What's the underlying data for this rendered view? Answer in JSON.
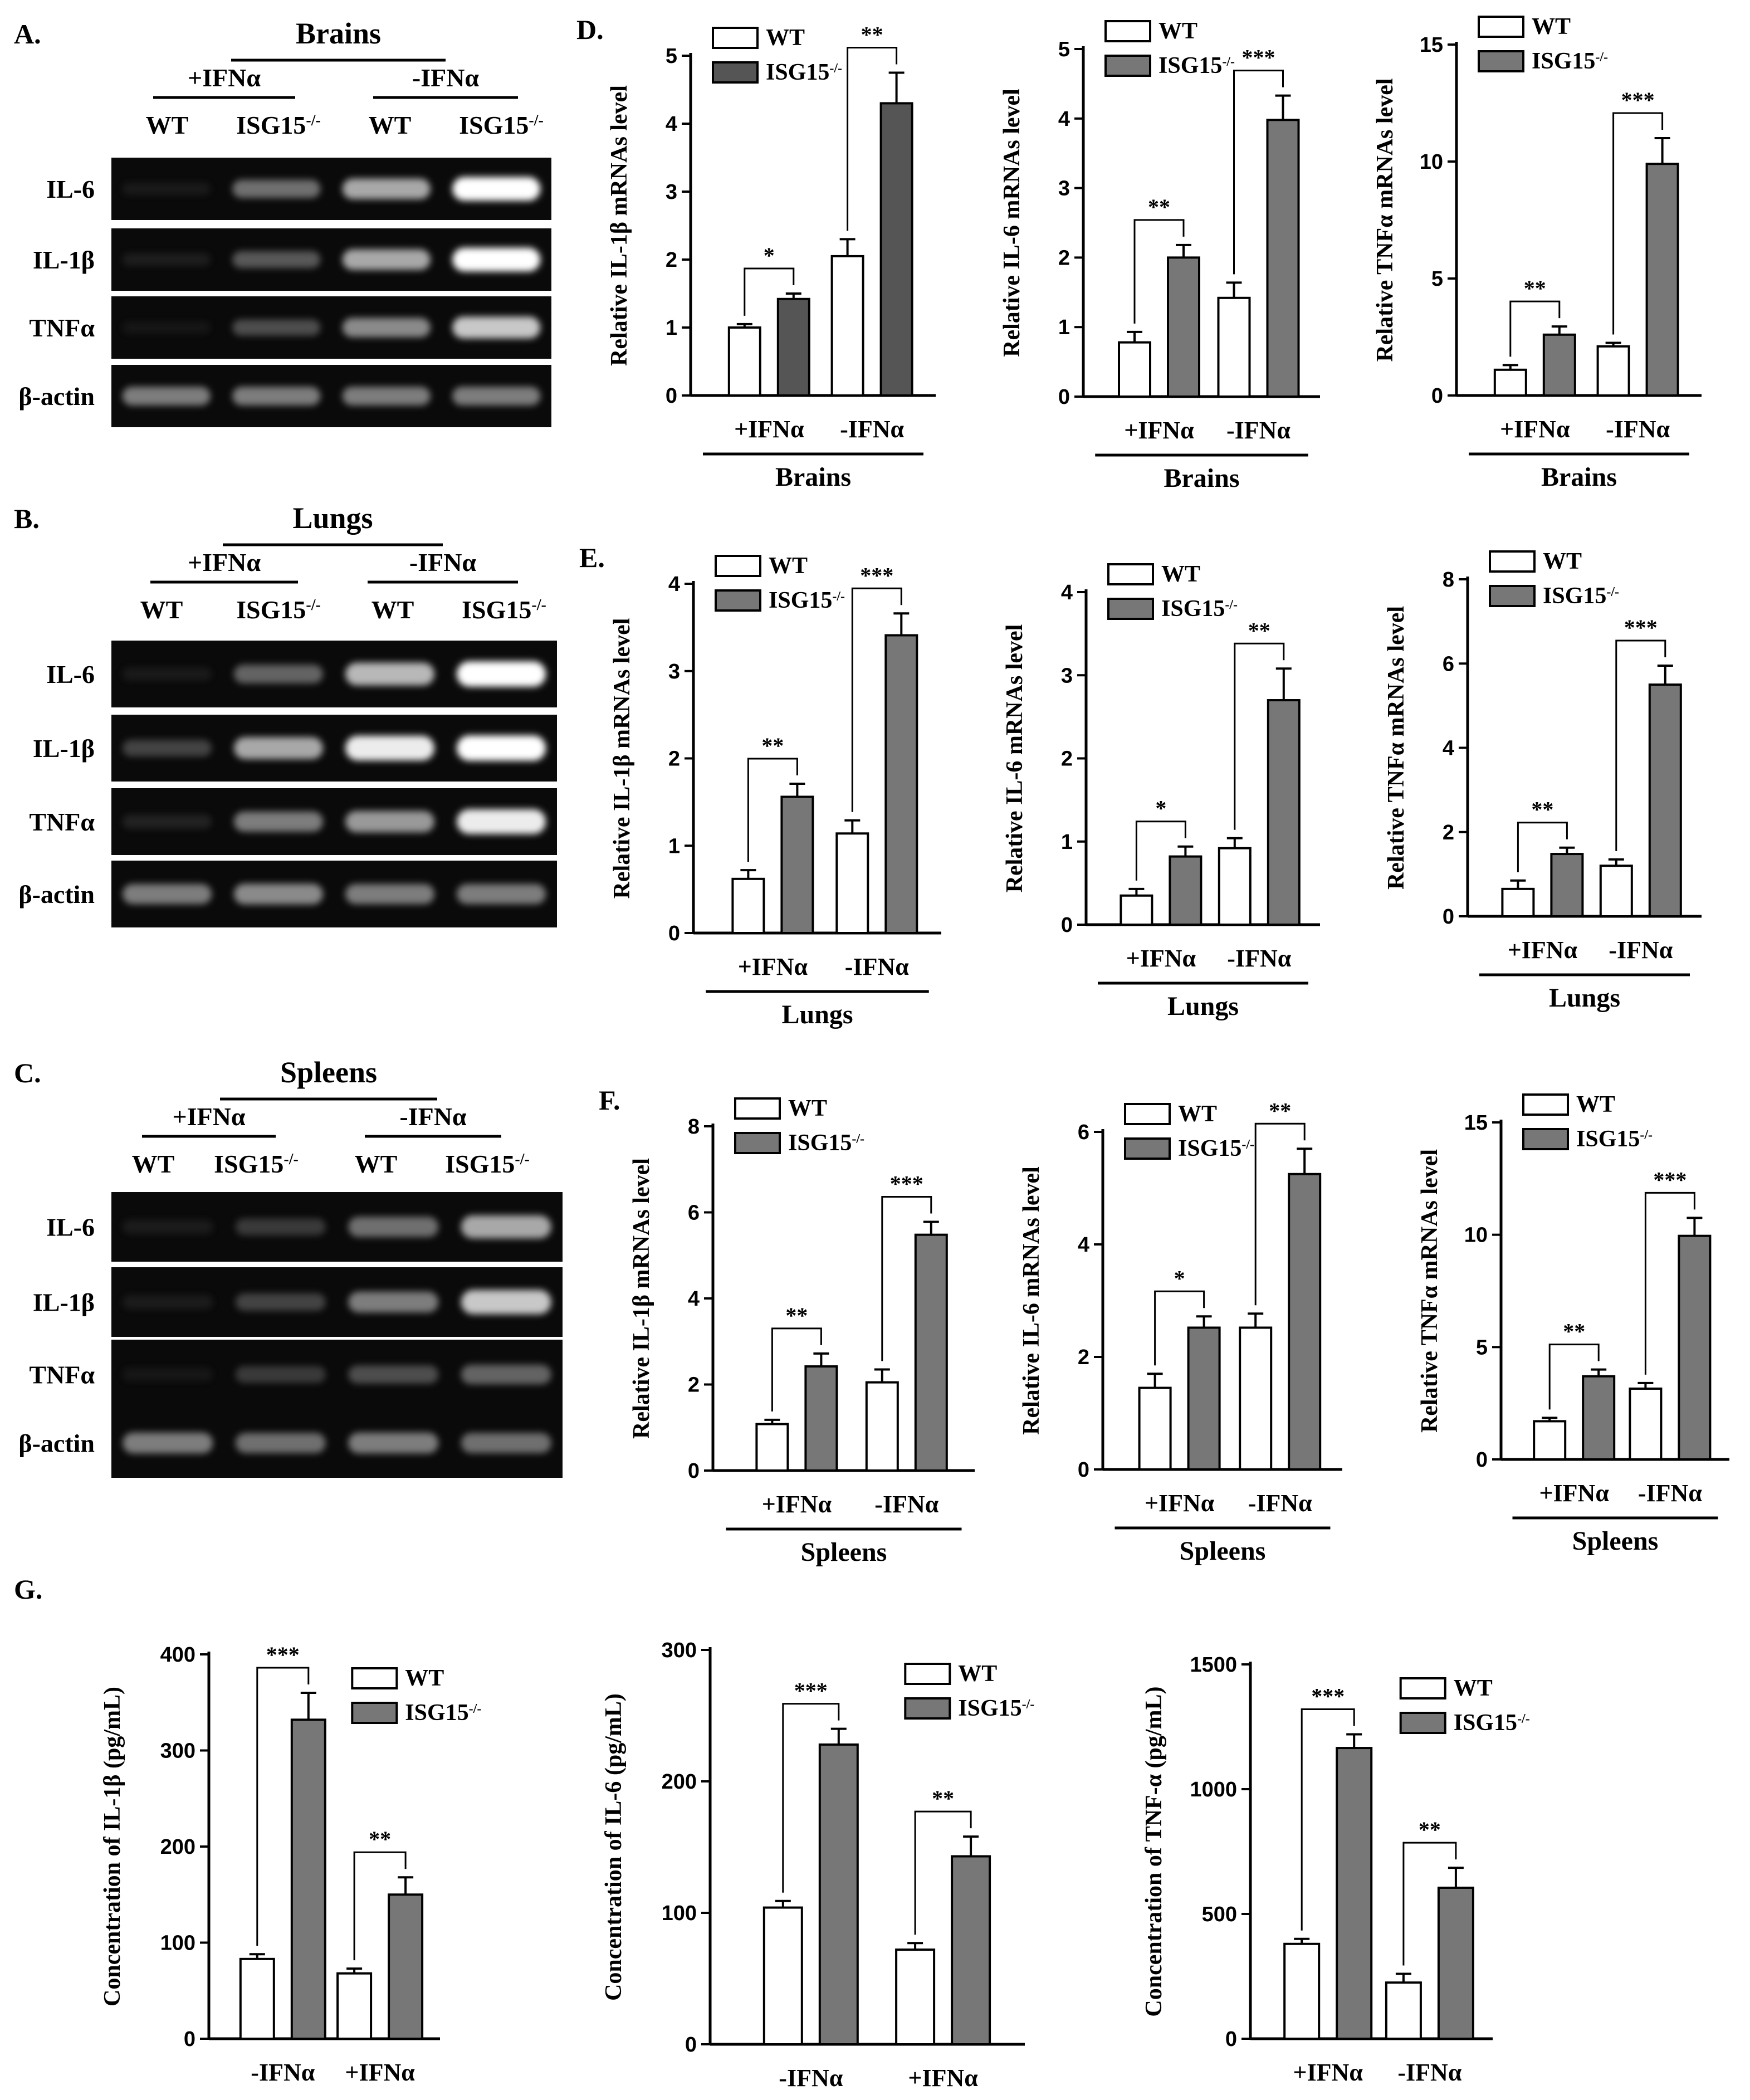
{
  "colors": {
    "wt_fill": "#ffffff",
    "ko_fill_brains_il1b": "#555555",
    "ko_fill": "#777777",
    "axis": "#000000",
    "gel_bg": "#0a0a0a"
  },
  "gels": [
    {
      "letter": "A.",
      "title": "Brains",
      "conditions": [
        "+IFNα",
        "-IFNα"
      ],
      "lanes": [
        "WT",
        "ISG15-/-",
        "WT",
        "ISG15-/-"
      ],
      "rows": [
        {
          "label": "IL-6",
          "intensity": [
            0.08,
            0.55,
            0.75,
            1.0
          ]
        },
        {
          "label": "IL-1β",
          "intensity": [
            0.12,
            0.45,
            0.75,
            1.0
          ]
        },
        {
          "label": "TNFα",
          "intensity": [
            0.05,
            0.4,
            0.65,
            0.85
          ]
        },
        {
          "label": "β-actin",
          "intensity": [
            0.6,
            0.6,
            0.6,
            0.6
          ]
        }
      ]
    },
    {
      "letter": "B.",
      "title": "Lungs",
      "conditions": [
        "+IFNα",
        "-IFNα"
      ],
      "lanes": [
        "WT",
        "ISG15-/-",
        "WT",
        "ISG15-/-"
      ],
      "rows": [
        {
          "label": "IL-6",
          "intensity": [
            0.08,
            0.5,
            0.8,
            1.0
          ]
        },
        {
          "label": "IL-1β",
          "intensity": [
            0.35,
            0.75,
            0.95,
            1.0
          ]
        },
        {
          "label": "TNFα",
          "intensity": [
            0.15,
            0.6,
            0.7,
            0.95
          ]
        },
        {
          "label": "β-actin",
          "intensity": [
            0.6,
            0.65,
            0.6,
            0.6
          ]
        }
      ]
    },
    {
      "letter": "C.",
      "title": "Spleens",
      "conditions": [
        "+IFNα",
        "-IFNα"
      ],
      "lanes": [
        "WT",
        "ISG15-/-",
        "WT",
        "ISG15-/-"
      ],
      "rows": [
        {
          "label": "IL-6",
          "intensity": [
            0.1,
            0.3,
            0.55,
            0.75
          ]
        },
        {
          "label": "IL-1β",
          "intensity": [
            0.1,
            0.35,
            0.6,
            0.85
          ]
        },
        {
          "label": "TNFα",
          "intensity": [
            0.05,
            0.3,
            0.4,
            0.5
          ]
        },
        {
          "label": "β-actin",
          "intensity": [
            0.6,
            0.55,
            0.6,
            0.55
          ]
        }
      ]
    }
  ],
  "chart_data": [
    {
      "panel": "D.",
      "type": "bar",
      "tissue": "Brains",
      "categories": [
        "+IFNα",
        "-IFNα"
      ],
      "ylabel": "Relative IL-1β mRNAs level",
      "ylim": [
        0,
        5
      ],
      "yticks": [
        0,
        1,
        2,
        3,
        4,
        5
      ],
      "series": [
        {
          "name": "WT",
          "values": [
            1.0,
            2.05
          ],
          "errors": [
            0.05,
            0.25
          ]
        },
        {
          "name": "ISG15-/-",
          "values": [
            1.42,
            4.3
          ],
          "errors": [
            0.08,
            0.45
          ]
        }
      ],
      "significance": [
        "*",
        "**"
      ],
      "legend": "top-left",
      "ko_dark": true
    },
    {
      "panel": "",
      "type": "bar",
      "tissue": "Brains",
      "categories": [
        "+IFNα",
        "-IFNα"
      ],
      "ylabel": "Relative IL-6 mRNAs level",
      "ylim": [
        0,
        5
      ],
      "yticks": [
        0,
        1,
        2,
        3,
        4,
        5
      ],
      "series": [
        {
          "name": "WT",
          "values": [
            0.78,
            1.42
          ],
          "errors": [
            0.15,
            0.22
          ]
        },
        {
          "name": "ISG15-/-",
          "values": [
            2.0,
            3.98
          ],
          "errors": [
            0.18,
            0.35
          ]
        }
      ],
      "significance": [
        "**",
        "***"
      ],
      "legend": "top-left"
    },
    {
      "panel": "",
      "type": "bar",
      "tissue": "Brains",
      "categories": [
        "+IFNα",
        "-IFNα"
      ],
      "ylabel": "Relative TNFα mRNAs level",
      "ylim": [
        0,
        15
      ],
      "yticks": [
        0,
        5,
        10,
        15
      ],
      "series": [
        {
          "name": "WT",
          "values": [
            1.1,
            2.1
          ],
          "errors": [
            0.2,
            0.15
          ]
        },
        {
          "name": "ISG15-/-",
          "values": [
            2.6,
            9.9
          ],
          "errors": [
            0.35,
            1.1
          ]
        }
      ],
      "significance": [
        "**",
        "***"
      ],
      "legend": "top-left"
    },
    {
      "panel": "E.",
      "type": "bar",
      "tissue": "Lungs",
      "categories": [
        "+IFNα",
        "-IFNα"
      ],
      "ylabel": "Relative IL-1β mRNAs level",
      "ylim": [
        0,
        4
      ],
      "yticks": [
        0,
        1,
        2,
        3,
        4
      ],
      "series": [
        {
          "name": "WT",
          "values": [
            0.62,
            1.14
          ],
          "errors": [
            0.1,
            0.15
          ]
        },
        {
          "name": "ISG15-/-",
          "values": [
            1.56,
            3.41
          ],
          "errors": [
            0.15,
            0.25
          ]
        }
      ],
      "significance": [
        "**",
        "***"
      ],
      "legend": "top-left"
    },
    {
      "panel": "",
      "type": "bar",
      "tissue": "Lungs",
      "categories": [
        "+IFNα",
        "-IFNα"
      ],
      "ylabel": "Relative IL-6 mRNAs level",
      "ylim": [
        0,
        4
      ],
      "yticks": [
        0,
        1,
        2,
        3,
        4
      ],
      "series": [
        {
          "name": "WT",
          "values": [
            0.35,
            0.92
          ],
          "errors": [
            0.08,
            0.12
          ]
        },
        {
          "name": "ISG15-/-",
          "values": [
            0.82,
            2.7
          ],
          "errors": [
            0.12,
            0.38
          ]
        }
      ],
      "significance": [
        "*",
        "**"
      ],
      "legend": "top-left"
    },
    {
      "panel": "",
      "type": "bar",
      "tissue": "Lungs",
      "categories": [
        "+IFNα",
        "-IFNα"
      ],
      "ylabel": "Relative TNFα mRNAs level",
      "ylim": [
        0,
        8
      ],
      "yticks": [
        0,
        2,
        4,
        6,
        8
      ],
      "series": [
        {
          "name": "WT",
          "values": [
            0.65,
            1.2
          ],
          "errors": [
            0.2,
            0.15
          ]
        },
        {
          "name": "ISG15-/-",
          "values": [
            1.48,
            5.5
          ],
          "errors": [
            0.15,
            0.45
          ]
        }
      ],
      "significance": [
        "**",
        "***"
      ],
      "legend": "top-left"
    },
    {
      "panel": "F.",
      "type": "bar",
      "tissue": "Spleens",
      "categories": [
        "+IFNα",
        "-IFNα"
      ],
      "ylabel": "Relative IL-1β mRNAs level",
      "ylim": [
        0,
        8
      ],
      "yticks": [
        0,
        2,
        4,
        6,
        8
      ],
      "series": [
        {
          "name": "WT",
          "values": [
            1.08,
            2.05
          ],
          "errors": [
            0.1,
            0.3
          ]
        },
        {
          "name": "ISG15-/-",
          "values": [
            2.42,
            5.48
          ],
          "errors": [
            0.3,
            0.3
          ]
        }
      ],
      "significance": [
        "**",
        "***"
      ],
      "legend": "top-left"
    },
    {
      "panel": "",
      "type": "bar",
      "tissue": "Spleens",
      "categories": [
        "+IFNα",
        "-IFNα"
      ],
      "ylabel": "Relative IL-6 mRNAs level",
      "ylim": [
        0,
        6
      ],
      "yticks": [
        0,
        2,
        4,
        6
      ],
      "series": [
        {
          "name": "WT",
          "values": [
            1.45,
            2.52
          ],
          "errors": [
            0.25,
            0.25
          ]
        },
        {
          "name": "ISG15-/-",
          "values": [
            2.52,
            5.25
          ],
          "errors": [
            0.2,
            0.45
          ]
        }
      ],
      "significance": [
        "*",
        "**"
      ],
      "legend": "top-left"
    },
    {
      "panel": "",
      "type": "bar",
      "tissue": "Spleens",
      "categories": [
        "+IFNα",
        "-IFNα"
      ],
      "ylabel": "Relative TNFα mRNAs level",
      "ylim": [
        0,
        15
      ],
      "yticks": [
        0,
        5,
        10,
        15
      ],
      "series": [
        {
          "name": "WT",
          "values": [
            1.7,
            3.15
          ],
          "errors": [
            0.15,
            0.25
          ]
        },
        {
          "name": "ISG15-/-",
          "values": [
            3.7,
            9.95
          ],
          "errors": [
            0.3,
            0.8
          ]
        }
      ],
      "significance": [
        "**",
        "***"
      ],
      "legend": "top-left"
    },
    {
      "panel": "G.",
      "type": "bar",
      "tissue": "",
      "categories": [
        "-IFNα",
        "+IFNα"
      ],
      "ylabel": "Concentration of IL-1β (pg/mL)",
      "ylim": [
        0,
        400
      ],
      "yticks": [
        0,
        100,
        200,
        300,
        400
      ],
      "series": [
        {
          "name": "WT",
          "values": [
            83,
            68
          ],
          "errors": [
            5,
            5
          ]
        },
        {
          "name": "ISG15-/-",
          "values": [
            332,
            150
          ],
          "errors": [
            28,
            18
          ]
        }
      ],
      "significance": [
        "***",
        "**"
      ],
      "legend": "top-right"
    },
    {
      "panel": "",
      "type": "bar",
      "tissue": "",
      "categories": [
        "-IFNα",
        "+IFNα"
      ],
      "ylabel": "Concentration of IL-6 (pg/mL)",
      "ylim": [
        0,
        300
      ],
      "yticks": [
        0,
        100,
        200,
        300
      ],
      "series": [
        {
          "name": "WT",
          "values": [
            104,
            72
          ],
          "errors": [
            5,
            5
          ]
        },
        {
          "name": "ISG15-/-",
          "values": [
            228,
            143
          ],
          "errors": [
            12,
            15
          ]
        }
      ],
      "significance": [
        "***",
        "**"
      ],
      "legend": "top-right"
    },
    {
      "panel": "",
      "type": "bar",
      "tissue": "",
      "categories": [
        "+IFNα",
        "-IFNα"
      ],
      "ylabel": "Concentration of TNF-α (pg/mL)",
      "ylim": [
        0,
        1500
      ],
      "yticks": [
        0,
        500,
        1000,
        1500
      ],
      "series": [
        {
          "name": "WT",
          "values": [
            380,
            225
          ],
          "errors": [
            20,
            35
          ]
        },
        {
          "name": "ISG15-/-",
          "values": [
            1165,
            605
          ],
          "errors": [
            55,
            80
          ]
        }
      ],
      "significance": [
        "***",
        "**"
      ],
      "legend": "top-right"
    }
  ]
}
